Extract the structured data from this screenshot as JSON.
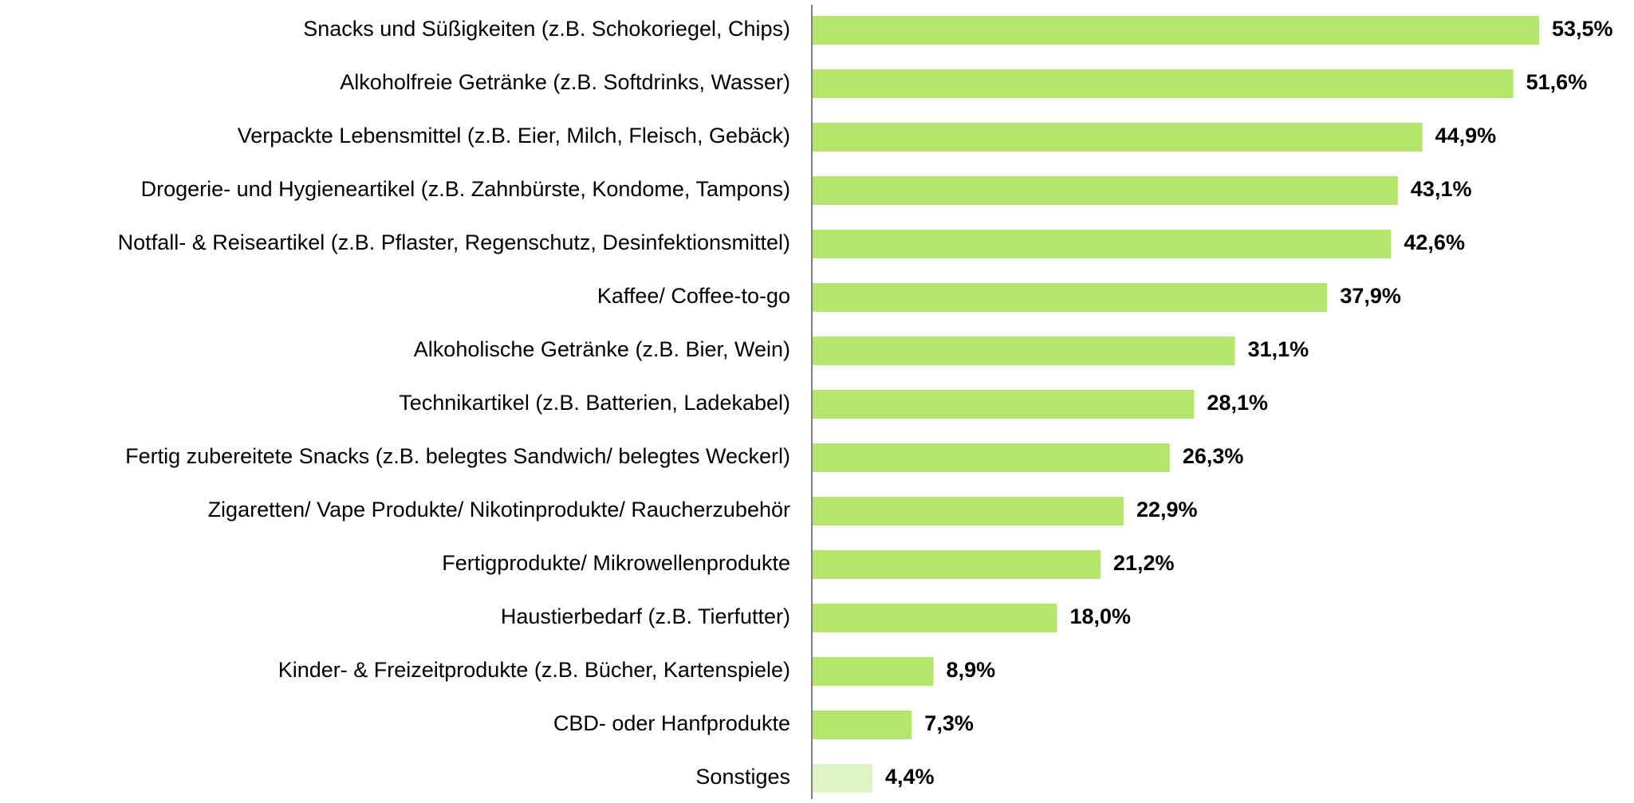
{
  "chart_data": {
    "type": "barh",
    "categories": [
      "Snacks und Süßigkeiten (z.B. Schokoriegel, Chips)",
      "Alkoholfreie Getränke (z.B. Softdrinks, Wasser)",
      "Verpackte Lebensmittel (z.B. Eier, Milch, Fleisch, Gebäck)",
      "Drogerie- und Hygieneartikel (z.B. Zahnbürste, Kondome, Tampons)",
      "Notfall- & Reiseartikel (z.B. Pflaster, Regenschutz, Desinfektionsmittel)",
      "Kaffee/ Coffee-to-go",
      "Alkoholische Getränke (z.B. Bier, Wein)",
      "Technikartikel (z.B. Batterien, Ladekabel)",
      "Fertig zubereitete Snacks (z.B. belegtes Sandwich/ belegtes Weckerl)",
      "Zigaretten/ Vape Produkte/ Nikotinprodukte/ Raucherzubehör",
      "Fertigprodukte/ Mikrowellenprodukte",
      "Haustierbedarf (z.B. Tierfutter)",
      "Kinder- & Freizeitprodukte (z.B. Bücher, Kartenspiele)",
      "CBD- oder Hanfprodukte",
      "Sonstiges"
    ],
    "values": [
      53.5,
      51.6,
      44.9,
      43.1,
      42.6,
      37.9,
      31.1,
      28.1,
      26.3,
      22.9,
      21.2,
      18.0,
      8.9,
      7.3,
      4.4
    ],
    "value_labels": [
      "53,5%",
      "51,6%",
      "44,9%",
      "43,1%",
      "42,6%",
      "37,9%",
      "31,1%",
      "28,1%",
      "26,3%",
      "22,9%",
      "21,2%",
      "18,0%",
      "8,9%",
      "7,3%",
      "4,4%"
    ],
    "colors": [
      "#b3e66a",
      "#b3e66a",
      "#b3e66a",
      "#b3e66a",
      "#b3e66a",
      "#b3e66a",
      "#b3e66a",
      "#b3e66a",
      "#b3e66a",
      "#b3e66a",
      "#b3e66a",
      "#b3e66a",
      "#b3e66a",
      "#b3e66a",
      "#ddf4c6"
    ]
  }
}
